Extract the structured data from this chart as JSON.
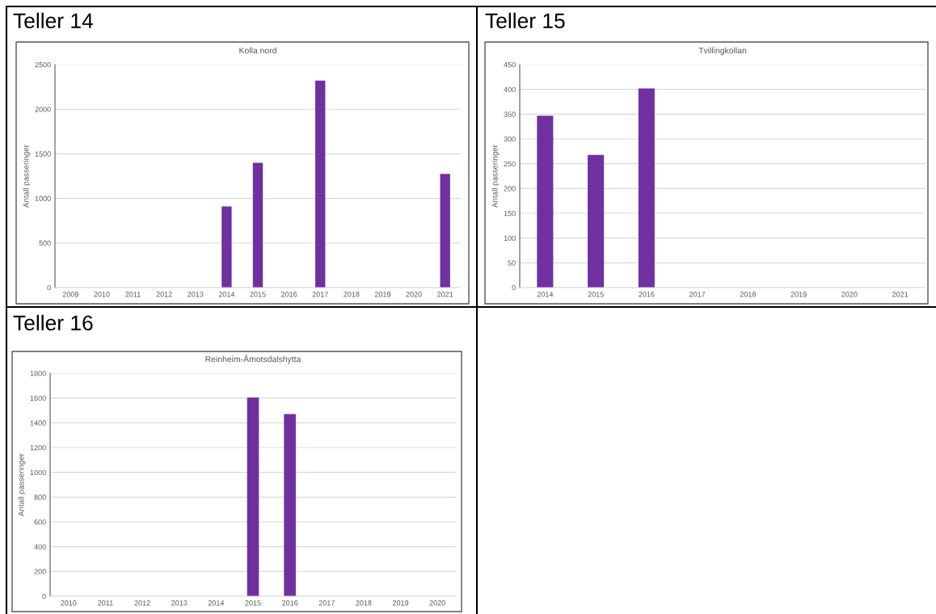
{
  "chart_data": [
    {
      "type": "bar",
      "title": "Teller 14",
      "subtitle": "Kolla nord",
      "ylabel": "Antall passeringer",
      "categories": [
        "2009",
        "2010",
        "2011",
        "2012",
        "2013",
        "2014",
        "2015",
        "2016",
        "2017",
        "2018",
        "2019",
        "2020",
        "2021"
      ],
      "values": [
        null,
        null,
        null,
        null,
        null,
        910,
        1400,
        null,
        2320,
        null,
        null,
        null,
        1275
      ],
      "color": "#7030a0",
      "ylim": [
        0,
        2500
      ],
      "yticks": [
        0,
        500,
        1000,
        1500,
        2000,
        2500
      ],
      "grid": "y"
    },
    {
      "type": "bar",
      "title": "Teller 15",
      "subtitle": "Tvillingkollan",
      "ylabel": "Antall passeringer",
      "categories": [
        "2014",
        "2015",
        "2016",
        "2017",
        "2018",
        "2019",
        "2020",
        "2021"
      ],
      "values": [
        347,
        268,
        402,
        null,
        null,
        null,
        null,
        null
      ],
      "color": "#7030a0",
      "ylim": [
        0,
        450
      ],
      "yticks": [
        0,
        50,
        100,
        150,
        200,
        250,
        300,
        350,
        400,
        450
      ],
      "grid": "y"
    },
    {
      "type": "bar",
      "title": "Teller 16",
      "subtitle": "Reinheim-Åmotsdalshytta",
      "ylabel": "Antall passeringer",
      "categories": [
        "2010",
        "2011",
        "2012",
        "2013",
        "2014",
        "2015",
        "2016",
        "2017",
        "2018",
        "2019",
        "2020"
      ],
      "values": [
        null,
        null,
        null,
        null,
        null,
        1605,
        1470,
        null,
        null,
        null,
        null
      ],
      "color": "#7030a0",
      "ylim": [
        0,
        1800
      ],
      "yticks": [
        0,
        200,
        400,
        600,
        800,
        1000,
        1200,
        1400,
        1600,
        1800
      ],
      "grid": "y"
    }
  ]
}
